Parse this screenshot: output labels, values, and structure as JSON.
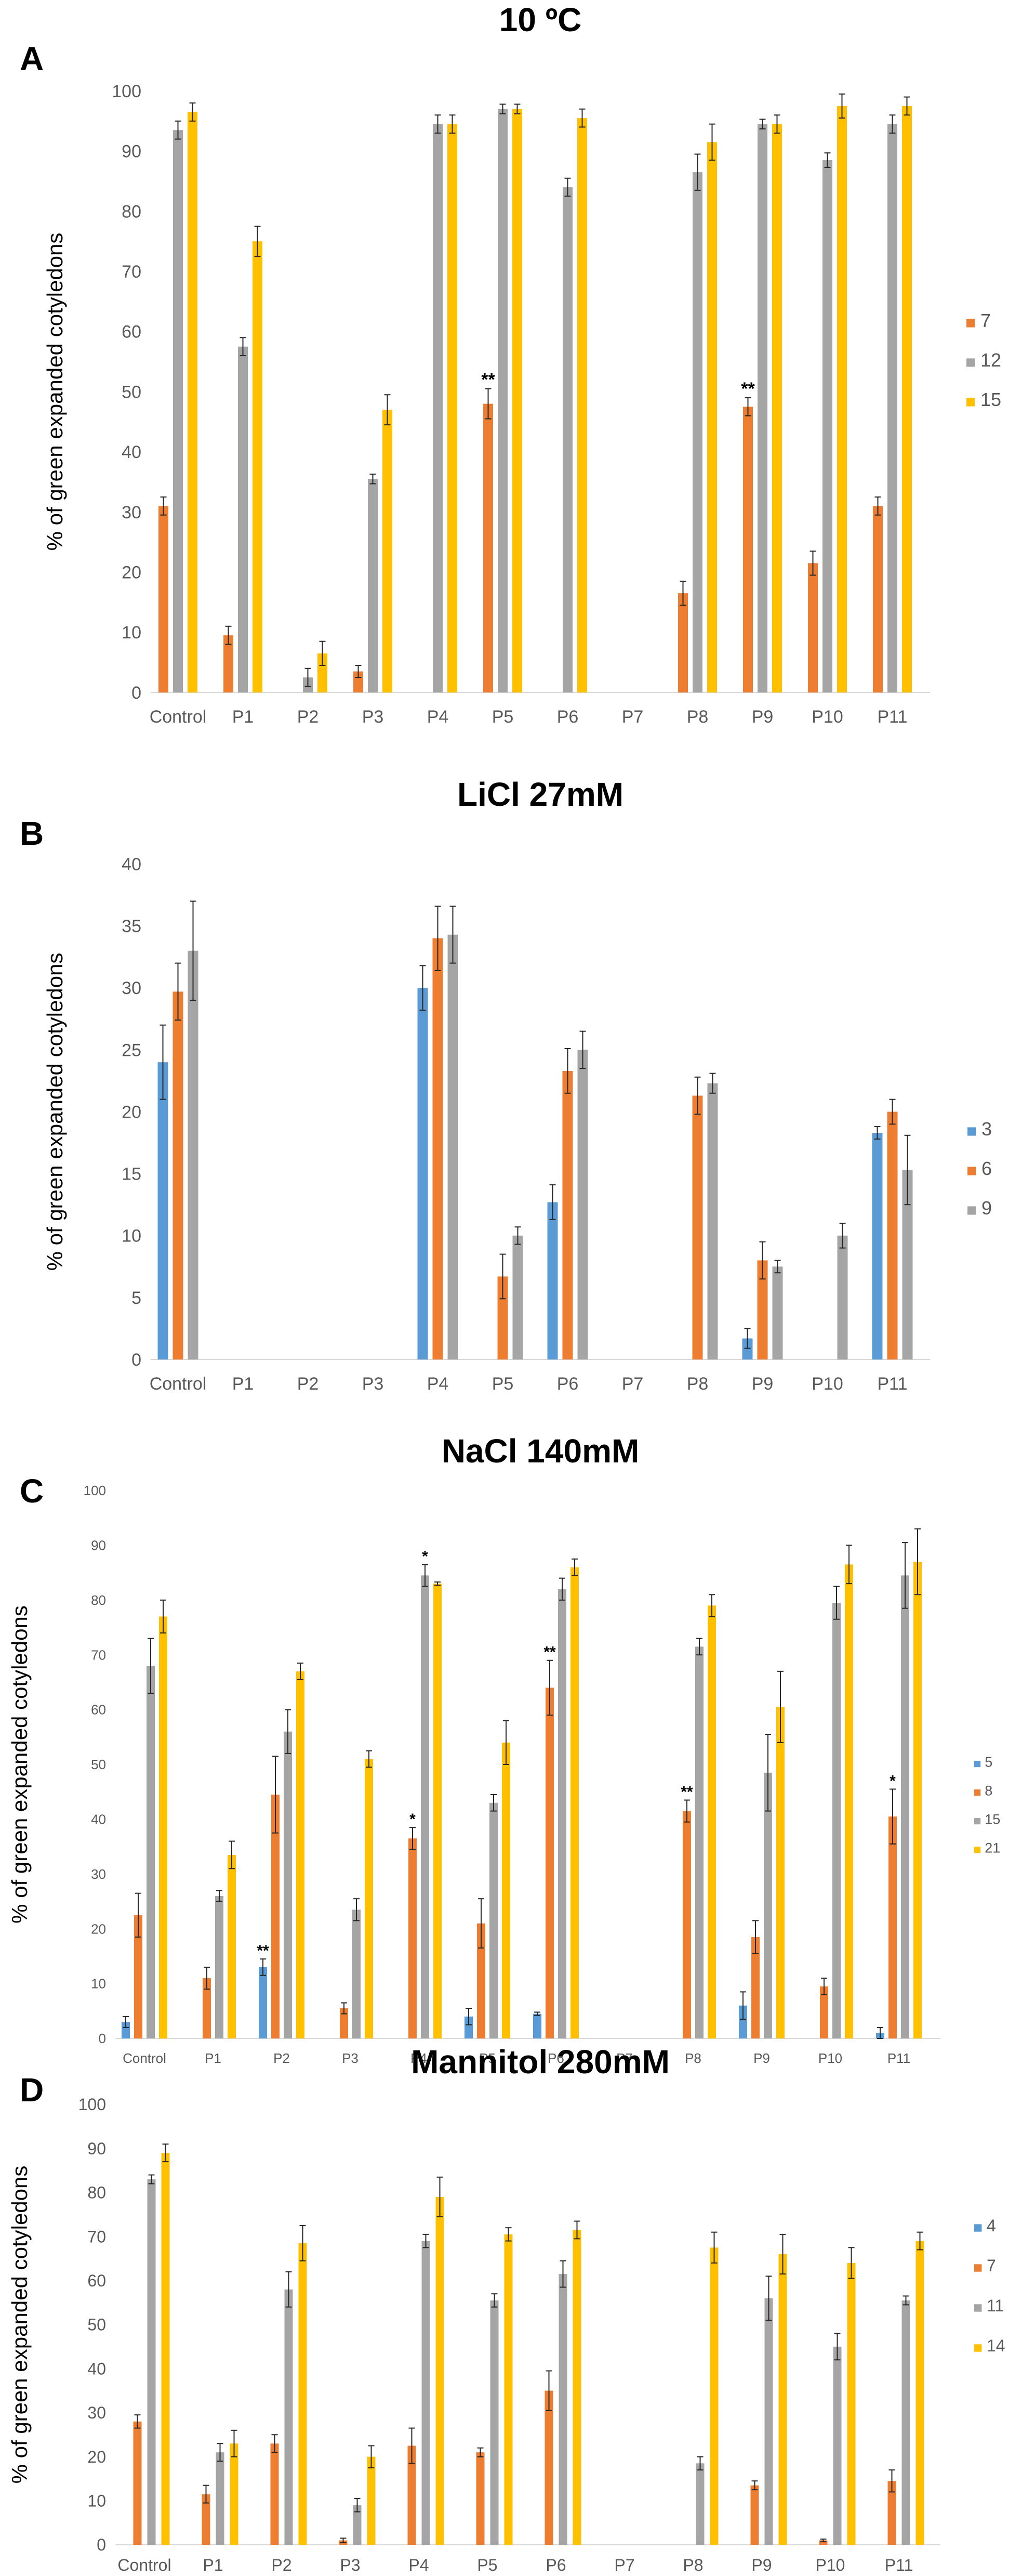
{
  "figure": {
    "ylabel": "% of green expanded cotyledons"
  },
  "chart_data": [
    {
      "panel": "A",
      "type": "bar",
      "title": "10 ºC",
      "ylabel": "% of green expanded cotyledons",
      "xlabel": "",
      "ylim": [
        0,
        100
      ],
      "yticks": [
        0,
        10,
        20,
        30,
        40,
        50,
        60,
        70,
        80,
        90,
        100
      ],
      "categories": [
        "Control",
        "P1",
        "P2",
        "P3",
        "P4",
        "P5",
        "P6",
        "P7",
        "P8",
        "P9",
        "P10",
        "P11"
      ],
      "legend_position": "right",
      "series": [
        {
          "name": "7",
          "color": "#ed7d31",
          "values": [
            31,
            9.5,
            0,
            3.5,
            0,
            48,
            0,
            0,
            16.5,
            47.5,
            21.5,
            31
          ],
          "errors": [
            1.5,
            1.5,
            0,
            1,
            0,
            2.5,
            0,
            0,
            2,
            1.5,
            2,
            1.5
          ]
        },
        {
          "name": "12",
          "color": "#a5a5a5",
          "values": [
            93.5,
            57.5,
            2.5,
            35.5,
            94.5,
            97,
            84,
            0,
            86.5,
            94.5,
            88.5,
            94.5
          ],
          "errors": [
            1.5,
            1.5,
            1.5,
            0.8,
            1.5,
            0.8,
            1.5,
            0,
            3,
            0.8,
            1.2,
            1.5
          ]
        },
        {
          "name": "15",
          "color": "#ffc000",
          "values": [
            96.5,
            75,
            6.5,
            47,
            94.5,
            97,
            95.5,
            0,
            91.5,
            94.5,
            97.5,
            97.5
          ],
          "errors": [
            1.5,
            2.5,
            2,
            2.5,
            1.5,
            0.8,
            1.5,
            0,
            3,
            1.5,
            2,
            1.5
          ]
        }
      ],
      "annotations": [
        {
          "text": "**",
          "category": "P5",
          "series": "7"
        },
        {
          "text": "**",
          "category": "P9",
          "series": "7"
        }
      ]
    },
    {
      "panel": "B",
      "type": "bar",
      "title": "LiCl 27mM",
      "ylabel": "% of green expanded cotyledons",
      "xlabel": "",
      "ylim": [
        0,
        40
      ],
      "yticks": [
        0,
        5,
        10,
        15,
        20,
        25,
        30,
        35,
        40
      ],
      "categories": [
        "Control",
        "P1",
        "P2",
        "P3",
        "P4",
        "P5",
        "P6",
        "P7",
        "P8",
        "P9",
        "P10",
        "P11"
      ],
      "legend_position": "right",
      "series": [
        {
          "name": "3",
          "color": "#5b9bd5",
          "values": [
            24,
            0,
            0,
            0,
            30,
            0,
            12.7,
            0,
            0,
            1.7,
            0,
            18.3
          ],
          "errors": [
            3,
            0,
            0,
            0,
            1.8,
            0,
            1.4,
            0,
            0,
            0.8,
            0,
            0.5
          ]
        },
        {
          "name": "6",
          "color": "#ed7d31",
          "values": [
            29.7,
            0,
            0,
            0,
            34,
            6.7,
            23.3,
            0,
            21.3,
            8,
            0,
            20
          ],
          "errors": [
            2.3,
            0,
            0,
            0,
            2.6,
            1.8,
            1.8,
            0,
            1.5,
            1.5,
            0,
            1
          ]
        },
        {
          "name": "9",
          "color": "#a5a5a5",
          "values": [
            33,
            0,
            0,
            0,
            34.3,
            10,
            25,
            0,
            22.3,
            7.5,
            10,
            15.3
          ],
          "errors": [
            4,
            0,
            0,
            0,
            2.3,
            0.7,
            1.5,
            0,
            0.8,
            0.5,
            1,
            2.8
          ]
        }
      ],
      "annotations": []
    },
    {
      "panel": "C",
      "type": "bar",
      "title": "NaCl 140mM",
      "ylabel": "% of green expanded cotyledons",
      "xlabel": "",
      "ylim": [
        0,
        100
      ],
      "yticks": [
        0,
        10,
        20,
        30,
        40,
        50,
        60,
        70,
        80,
        90,
        100
      ],
      "categories": [
        "Control",
        "P1",
        "P2",
        "P3",
        "P4",
        "P5",
        "P6",
        "P7",
        "P8",
        "P9",
        "P10",
        "P11"
      ],
      "legend_position": "right",
      "series": [
        {
          "name": "5",
          "color": "#5b9bd5",
          "values": [
            3,
            0,
            13,
            0,
            0,
            4,
            4.5,
            0,
            0,
            6,
            0,
            1
          ],
          "errors": [
            1,
            0,
            1.5,
            0,
            0,
            1.5,
            0.3,
            0,
            0,
            2.5,
            0,
            1
          ]
        },
        {
          "name": "8",
          "color": "#ed7d31",
          "values": [
            22.5,
            11,
            44.5,
            5.5,
            36.5,
            21,
            64,
            0,
            41.5,
            18.5,
            9.5,
            40.5
          ],
          "errors": [
            4,
            2,
            7,
            1,
            2,
            4.5,
            5,
            0,
            2,
            3,
            1.5,
            5
          ]
        },
        {
          "name": "15",
          "color": "#a5a5a5",
          "values": [
            68,
            26,
            56,
            23.5,
            84.5,
            43,
            82,
            0,
            71.5,
            48.5,
            79.5,
            84.5
          ],
          "errors": [
            5,
            1,
            4,
            2,
            2,
            1.5,
            2,
            0,
            1.5,
            7,
            3,
            6
          ]
        },
        {
          "name": "21",
          "color": "#ffc000",
          "values": [
            77,
            33.5,
            67,
            51,
            83,
            54,
            86,
            0,
            79,
            60.5,
            86.5,
            87
          ],
          "errors": [
            3,
            2.5,
            1.5,
            1.5,
            0.3,
            4,
            1.5,
            0,
            2,
            6.5,
            3.5,
            6
          ]
        }
      ],
      "annotations": [
        {
          "text": "**",
          "category": "P2",
          "series": "5"
        },
        {
          "text": "*",
          "category": "P4",
          "series": "8"
        },
        {
          "text": "*",
          "category": "P4",
          "series": "15"
        },
        {
          "text": "**",
          "category": "P6",
          "series": "8"
        },
        {
          "text": "**",
          "category": "P8",
          "series": "8"
        },
        {
          "text": "*",
          "category": "P11",
          "series": "8"
        }
      ]
    },
    {
      "panel": "D",
      "type": "bar",
      "title": "Mannitol 280mM",
      "ylabel": "% of green expanded cotyledons",
      "xlabel": "",
      "ylim": [
        0,
        100
      ],
      "yticks": [
        0,
        10,
        20,
        30,
        40,
        50,
        60,
        70,
        80,
        90,
        100
      ],
      "categories": [
        "Control",
        "P1",
        "P2",
        "P3",
        "P4",
        "P5",
        "P6",
        "P7",
        "P8",
        "P9",
        "P10",
        "P11"
      ],
      "legend_position": "right",
      "series": [
        {
          "name": "4",
          "color": "#5b9bd5",
          "values": [
            0,
            0,
            0,
            0,
            0,
            0,
            0,
            0,
            0,
            0,
            0,
            0
          ],
          "errors": [
            0,
            0,
            0,
            0,
            0,
            0,
            0,
            0,
            0,
            0,
            0,
            0
          ]
        },
        {
          "name": "7",
          "color": "#ed7d31",
          "values": [
            28,
            11.5,
            23,
            1,
            22.5,
            21,
            35,
            0,
            0,
            13.5,
            1,
            14.5
          ],
          "errors": [
            1.5,
            2,
            2,
            0.5,
            4,
            1,
            4.5,
            0,
            0,
            1,
            0.3,
            2.5
          ]
        },
        {
          "name": "11",
          "color": "#a5a5a5",
          "values": [
            83,
            21,
            58,
            9,
            69,
            55.5,
            61.5,
            0,
            18.5,
            56,
            45,
            55.5
          ],
          "errors": [
            1,
            2,
            4,
            1.5,
            1.5,
            1.5,
            3,
            0,
            1.5,
            5,
            3,
            1
          ]
        },
        {
          "name": "14",
          "color": "#ffc000",
          "values": [
            89,
            23,
            68.5,
            20,
            79,
            70.5,
            71.5,
            0,
            67.5,
            66,
            64,
            69
          ],
          "errors": [
            2,
            3,
            4,
            2.5,
            4.5,
            1.5,
            2,
            0,
            3.5,
            4.5,
            3.5,
            2
          ]
        }
      ],
      "annotations": []
    }
  ]
}
